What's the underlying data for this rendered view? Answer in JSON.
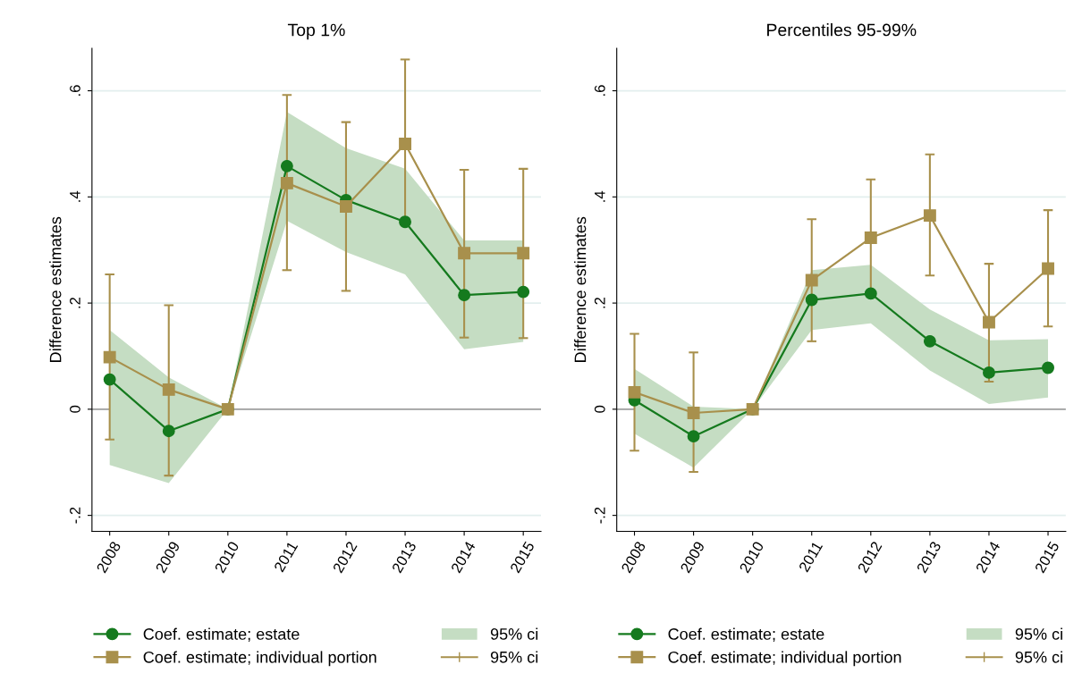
{
  "chart_data": [
    {
      "type": "line",
      "title": "Top 1%",
      "ylabel": "Difference estimates",
      "categories": [
        "2008",
        "2009",
        "2010",
        "2011",
        "2012",
        "2013",
        "2014",
        "2015"
      ],
      "series": [
        {
          "name": "Coef. estimate; estate",
          "color": "#157a1e",
          "marker": "circle",
          "values": [
            0.056,
            -0.041,
            0,
            0.458,
            0.394,
            0.353,
            0.215,
            0.221
          ],
          "lower": [
            -0.105,
            -0.139,
            0,
            0.355,
            0.296,
            0.254,
            0.113,
            0.127
          ],
          "upper": [
            0.149,
            0.06,
            0,
            0.56,
            0.492,
            0.453,
            0.318,
            0.318
          ]
        },
        {
          "name": "Coef. estimate; individual portion",
          "color": "#a8904c",
          "marker": "square",
          "values": [
            0.098,
            0.037,
            0,
            0.426,
            0.382,
            0.5,
            0.294,
            0.294
          ],
          "errors": [
            [
              -0.057,
              0.254
            ],
            [
              -0.125,
              0.196
            ],
            null,
            [
              0.262,
              0.592
            ],
            [
              0.223,
              0.541
            ],
            [
              0.348,
              0.659
            ],
            [
              0.135,
              0.451
            ],
            [
              0.134,
              0.453
            ]
          ]
        }
      ],
      "annotations": [
        "95% ci",
        "95% ci"
      ],
      "ylim": [
        -0.23,
        0.68
      ],
      "yticks": [
        {
          "value": -0.2,
          "label": "-.2"
        },
        0,
        {
          "value": 0.2,
          "label": ".2"
        },
        {
          "value": 0.4,
          "label": ".4"
        },
        {
          "value": 0.6,
          "label": ".6"
        }
      ],
      "ref_lines": [
        {
          "axis": "y",
          "value": 0,
          "color": "#a0a0a0"
        }
      ],
      "grid": "y",
      "legend": "bottom"
    },
    {
      "type": "line",
      "title": "Percentiles 95-99%",
      "ylabel": "Difference estimates",
      "categories": [
        "2008",
        "2009",
        "2010",
        "2011",
        "2012",
        "2013",
        "2014",
        "2015"
      ],
      "series": [
        {
          "name": "Coef. estimate; estate",
          "color": "#157a1e",
          "marker": "circle",
          "values": [
            0.017,
            -0.051,
            0,
            0.206,
            0.218,
            0.128,
            0.069,
            0.078
          ],
          "lower": [
            -0.046,
            -0.11,
            0,
            0.149,
            0.162,
            0.073,
            0.01,
            0.022
          ],
          "upper": [
            0.076,
            0.005,
            0,
            0.262,
            0.272,
            0.188,
            0.13,
            0.132
          ]
        },
        {
          "name": "Coef. estimate; individual portion",
          "color": "#a8904c",
          "marker": "square",
          "values": [
            0.032,
            -0.007,
            0,
            0.243,
            0.323,
            0.365,
            0.164,
            0.265
          ],
          "errors": [
            [
              -0.078,
              0.142
            ],
            [
              -0.118,
              0.107
            ],
            null,
            [
              0.128,
              0.358
            ],
            [
              0.213,
              0.433
            ],
            [
              0.252,
              0.48
            ],
            [
              0.052,
              0.274
            ],
            [
              0.156,
              0.375
            ]
          ]
        }
      ],
      "annotations": [
        "95% ci",
        "95% ci"
      ],
      "ylim": [
        -0.23,
        0.68
      ],
      "yticks": [
        {
          "value": -0.2,
          "label": "-.2"
        },
        0,
        {
          "value": 0.2,
          "label": ".2"
        },
        {
          "value": 0.4,
          "label": ".4"
        },
        {
          "value": 0.6,
          "label": ".6"
        }
      ],
      "ref_lines": [
        {
          "axis": "y",
          "value": 0,
          "color": "#a0a0a0"
        }
      ],
      "grid": "y",
      "legend": "bottom"
    }
  ]
}
